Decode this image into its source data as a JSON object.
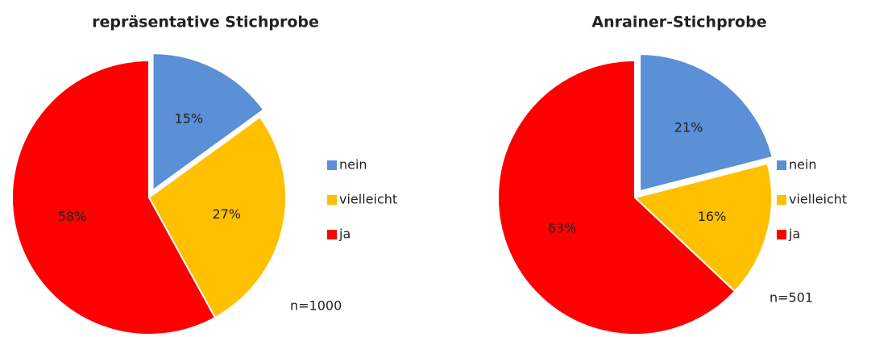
{
  "chart_data": [
    {
      "type": "pie",
      "title": "repräsentative Stichprobe",
      "categories": [
        "nein",
        "vielleicht",
        "ja"
      ],
      "values": [
        15,
        27,
        58
      ],
      "value_labels": [
        "15%",
        "27%",
        "58%"
      ],
      "colors": [
        "#5B8FD6",
        "#FFC000",
        "#FF0000"
      ],
      "annotation": "n=1000",
      "legend": "right"
    },
    {
      "type": "pie",
      "title": "Anrainer-Stichprobe",
      "categories": [
        "nein",
        "vielleicht",
        "ja"
      ],
      "values": [
        21,
        16,
        63
      ],
      "value_labels": [
        "21%",
        "16%",
        "63%"
      ],
      "colors": [
        "#5B8FD6",
        "#FFC000",
        "#FF0000"
      ],
      "annotation": "n=501",
      "legend": "right"
    }
  ]
}
